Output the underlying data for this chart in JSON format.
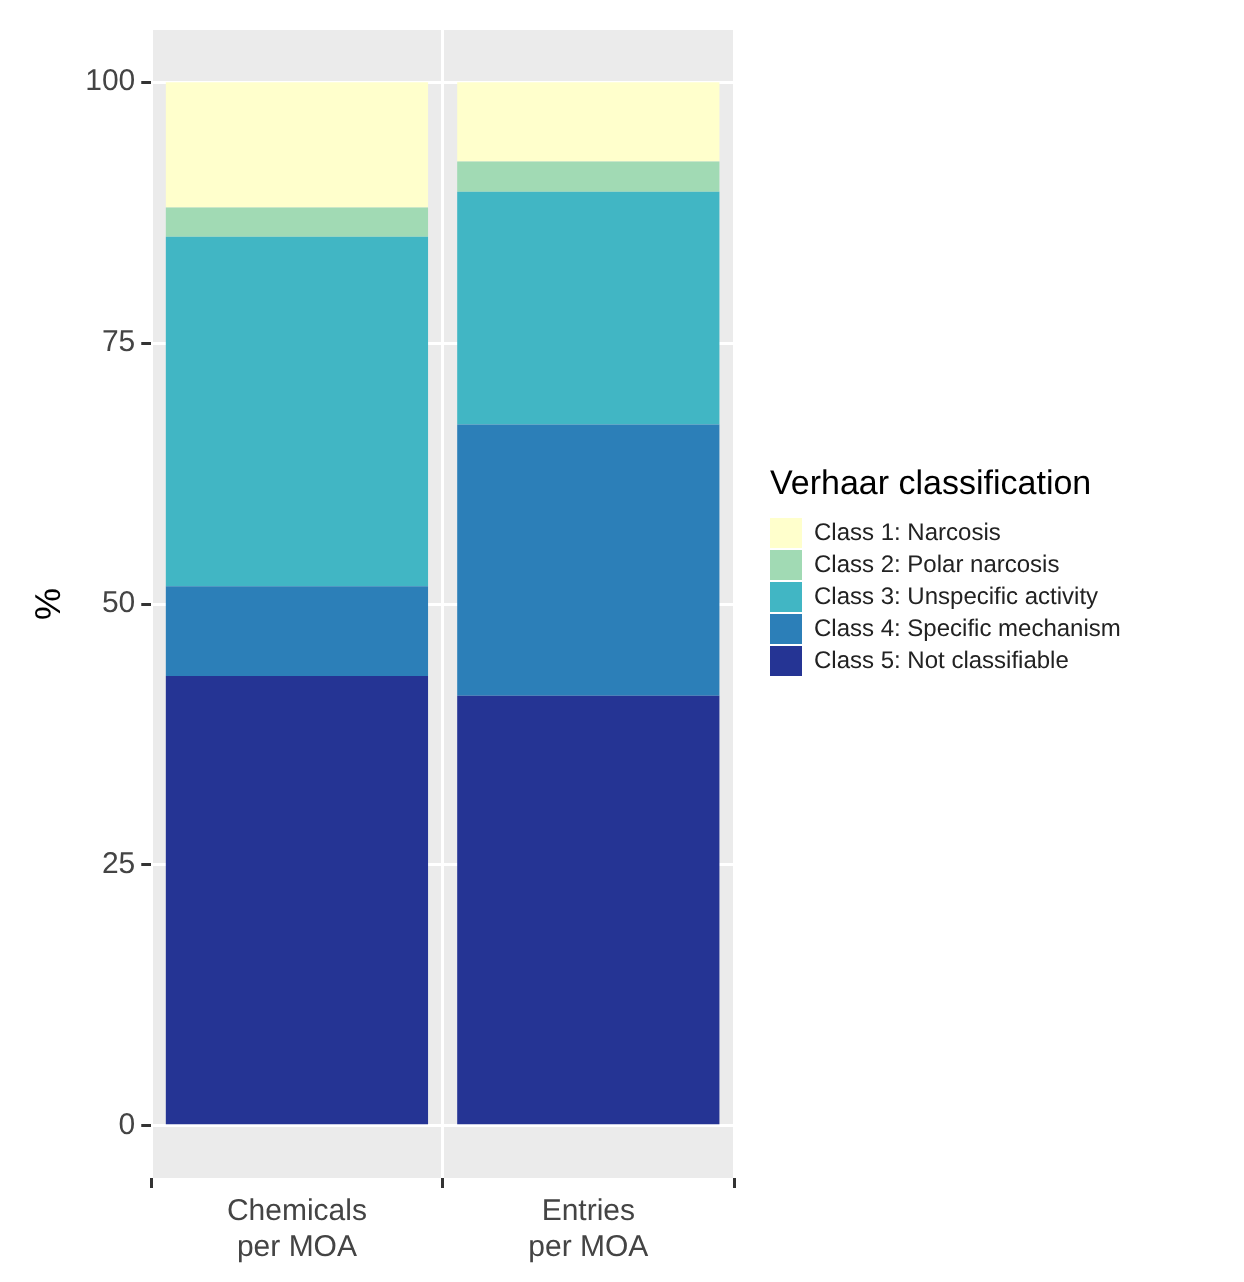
{
  "chart_data": {
    "type": "bar",
    "stacked": true,
    "ylabel": "%",
    "legend_title": "Verhaar classification",
    "legend": "right",
    "grid": true,
    "categories": [
      "Chemicals per MOA",
      "Entries per MOA"
    ],
    "ylim": [
      -5,
      105
    ],
    "yticks": [
      0,
      25,
      50,
      75,
      100
    ],
    "series": [
      {
        "name": "Class 5: Not classifiable",
        "color": "#253494",
        "values": [
          43.1,
          41.2
        ]
      },
      {
        "name": "Class 4: Specific mechanism",
        "color": "#2c7fb8",
        "values": [
          8.6,
          26.0
        ]
      },
      {
        "name": "Class 3: Unspecific activity",
        "color": "#41b6c4",
        "values": [
          33.5,
          22.3
        ]
      },
      {
        "name": "Class 2: Polar narcosis",
        "color": "#a1dab4",
        "values": [
          2.8,
          2.9
        ]
      },
      {
        "name": "Class 1: Narcosis",
        "color": "#ffffcc",
        "values": [
          12.0,
          7.6
        ]
      }
    ]
  }
}
